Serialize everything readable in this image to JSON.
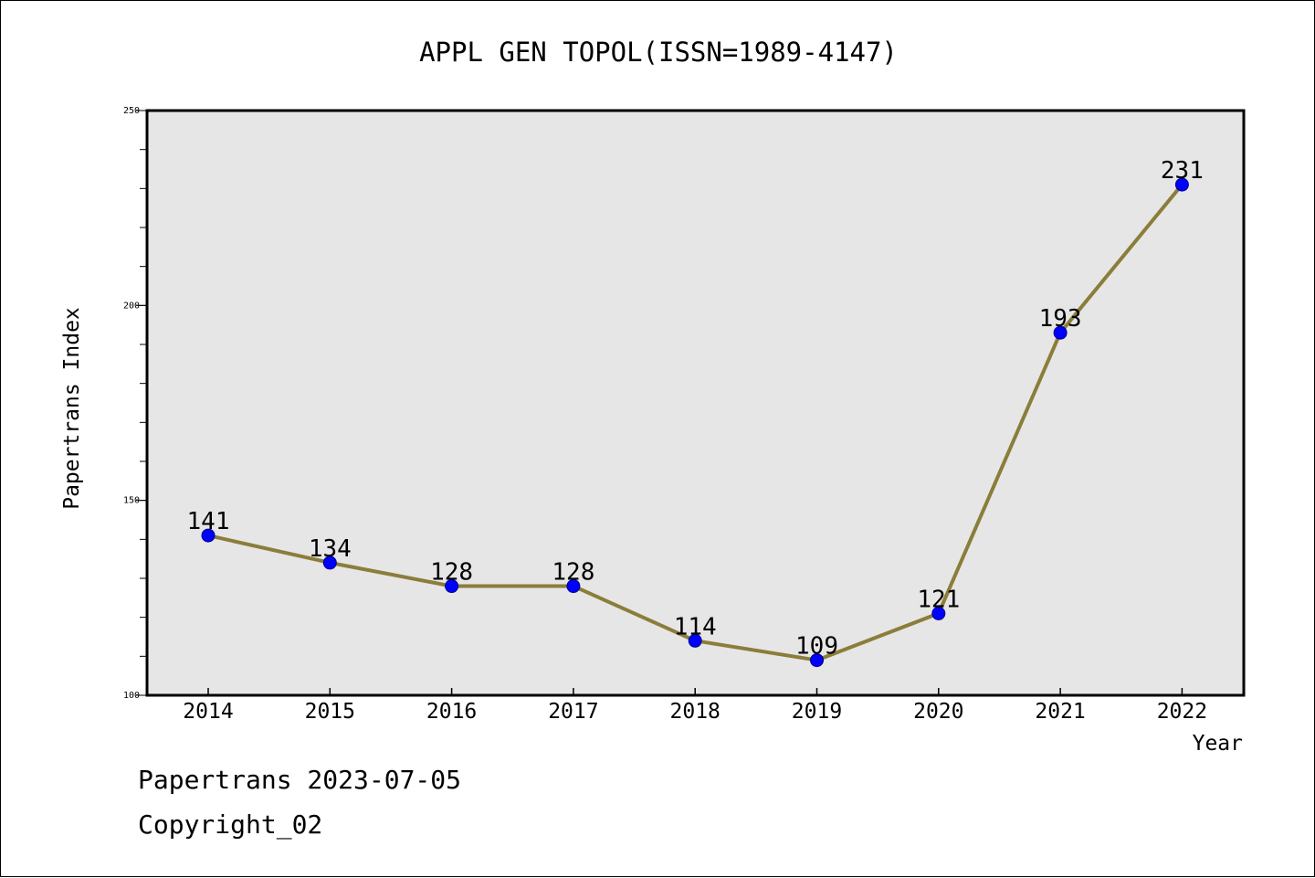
{
  "chart_data": {
    "type": "line",
    "title": "APPL GEN TOPOL(ISSN=1989-4147)",
    "xlabel": "Year",
    "ylabel": "Papertrans Index",
    "categories": [
      "2014",
      "2015",
      "2016",
      "2017",
      "2018",
      "2019",
      "2020",
      "2021",
      "2022"
    ],
    "series": [
      {
        "values": [
          141,
          134,
          128,
          128,
          114,
          109,
          121,
          193,
          231
        ]
      }
    ],
    "ylim": [
      100,
      250
    ],
    "yticks": [
      100,
      150,
      200,
      250
    ],
    "grid": false,
    "colors": {
      "line": "#8B7D3A",
      "marker": "#0000FF",
      "plot_background": "#E6E6E6"
    }
  },
  "footer": {
    "line1": "Papertrans 2023-07-05",
    "line2": "Copyright_02"
  }
}
